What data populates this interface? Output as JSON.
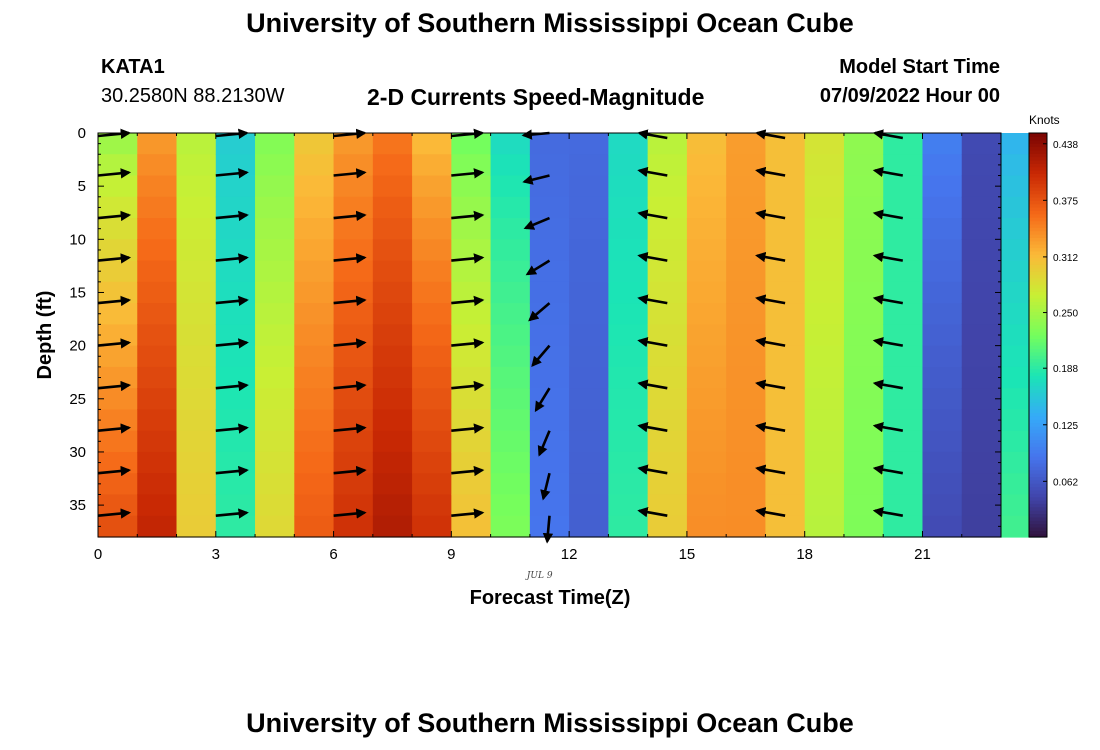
{
  "header": {
    "title": "University of Southern Mississippi Ocean Cube",
    "station": "KATA1",
    "coords": "30.2580N  88.2130W",
    "subtitle": "2-D Currents Speed-Magnitude",
    "model_start_label": "Model Start Time",
    "model_start_value": "07/09/2022 Hour 00"
  },
  "footer": {
    "title": "University of Southern Mississippi Ocean Cube"
  },
  "chart_data": {
    "type": "heatmap",
    "title": "2-D Currents Speed-Magnitude",
    "xlabel": "Forecast Time(Z)",
    "ylabel": "Depth (ft)",
    "date_label": "JUL 9",
    "x_ticks": [
      0,
      3,
      6,
      9,
      12,
      15,
      18,
      21
    ],
    "y_ticks": [
      0,
      5,
      10,
      15,
      20,
      25,
      30,
      35
    ],
    "xlim": [
      0,
      23
    ],
    "ylim": [
      0,
      38
    ],
    "y_inverted": true,
    "colorbar": {
      "title": "Knots",
      "ticks": [
        0.438,
        0.375,
        0.312,
        0.25,
        0.188,
        0.125,
        0.062
      ],
      "range": [
        0.0,
        0.45
      ]
    },
    "hours": [
      0,
      1,
      2,
      3,
      4,
      5,
      6,
      7,
      8,
      9,
      10,
      11,
      12,
      13,
      14,
      15,
      16,
      17,
      18,
      19,
      20,
      21,
      22,
      23
    ],
    "speed_surface": [
      0.24,
      0.33,
      0.26,
      0.16,
      0.23,
      0.3,
      0.33,
      0.35,
      0.31,
      0.22,
      0.17,
      0.08,
      0.08,
      0.17,
      0.26,
      0.31,
      0.33,
      0.31,
      0.28,
      0.24,
      0.19,
      0.1,
      0.05,
      0.14
    ],
    "speed_bottom": [
      0.38,
      0.41,
      0.3,
      0.19,
      0.29,
      0.37,
      0.4,
      0.42,
      0.4,
      0.31,
      0.23,
      0.09,
      0.07,
      0.19,
      0.3,
      0.34,
      0.34,
      0.31,
      0.26,
      0.23,
      0.19,
      0.05,
      0.04,
      0.2
    ],
    "vectors": {
      "hours": [
        0,
        3,
        6,
        9,
        11.5,
        14.5,
        17.5,
        20.5
      ],
      "depths": [
        0,
        4,
        8,
        12,
        16,
        20,
        24,
        28,
        32,
        36
      ],
      "directions": [
        "east",
        "east",
        "east",
        "east",
        "west / south-southwest",
        "west",
        "west",
        "west"
      ]
    }
  }
}
